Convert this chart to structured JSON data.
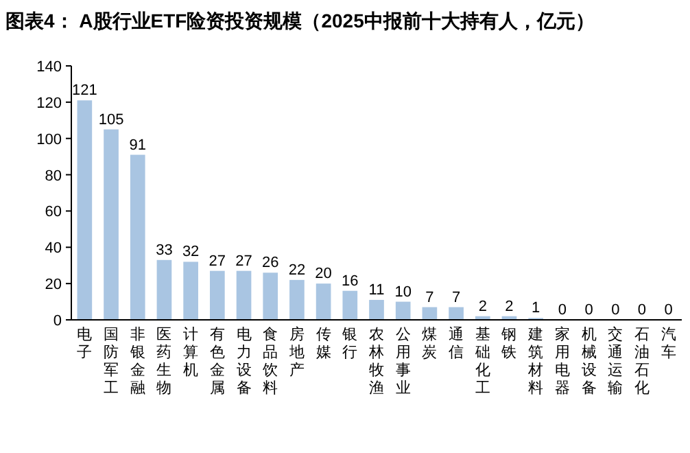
{
  "chart_data": {
    "type": "bar",
    "title": "图表4： A股行业ETF险资投资规模（2025中报前十大持有人，亿元）",
    "categories": [
      "电子",
      "国防军工",
      "非银金融",
      "医药生物",
      "计算机",
      "有色金属",
      "电力设备",
      "食品饮料",
      "房地产",
      "传媒",
      "银行",
      "农林牧渔",
      "公用事业",
      "煤炭",
      "通信",
      "基础化工",
      "钢铁",
      "建筑材料",
      "家用电器",
      "机械设备",
      "交通运输",
      "石油石化",
      "汽车"
    ],
    "values": [
      121,
      105,
      91,
      33,
      32,
      27,
      27,
      26,
      22,
      20,
      16,
      11,
      10,
      7,
      7,
      2,
      2,
      1,
      0,
      0,
      0,
      0,
      0
    ],
    "color": "#a9c5e2",
    "ylim": [
      0,
      140
    ],
    "yticks": [
      0,
      20,
      40,
      60,
      80,
      100,
      120,
      140
    ],
    "data_labels": true
  }
}
